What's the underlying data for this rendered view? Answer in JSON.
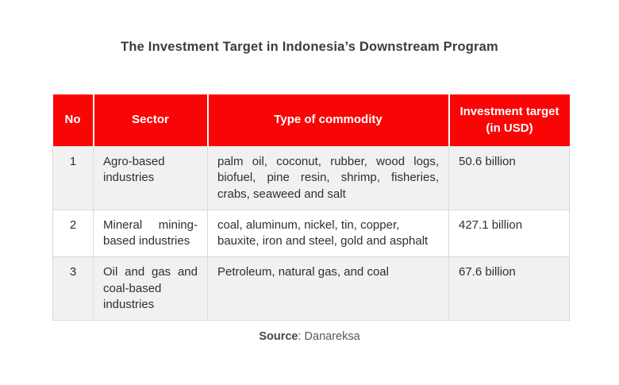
{
  "title": {
    "text": "The Investment Target in Indonesia’s Downstream Program"
  },
  "colors": {
    "header_bg": "#fa0505",
    "header_text": "#ffffff",
    "row_alt_bg": "#f1f1f1",
    "row_bg": "#ffffff",
    "border": "#d9d9d9",
    "body_text": "#2d2f31",
    "title_text": "#3a3c3f"
  },
  "table": {
    "columns": [
      {
        "key": "no",
        "label": "No"
      },
      {
        "key": "sector",
        "label": "Sector"
      },
      {
        "key": "commodity",
        "label": "Type of commodity"
      },
      {
        "key": "investment",
        "label": "Investment target (in USD)"
      }
    ],
    "rows": [
      {
        "no": "1",
        "sector": "Agro-based industries",
        "commodity": "palm oil, coconut, rubber, wood logs, biofuel, pine resin, shrimp, fisheries, crabs, seaweed and salt",
        "investment": "50.6 billion"
      },
      {
        "no": "2",
        "sector": "Mineral mining-based industries",
        "commodity": "coal, aluminum, nickel, tin, copper,\nbauxite, iron and steel, gold and asphalt",
        "investment": "427.1 billion"
      },
      {
        "no": "3",
        "sector": "Oil and gas and coal-based industries",
        "commodity": "Petroleum, natural gas, and coal",
        "investment": "67.6 billion"
      }
    ]
  },
  "source": {
    "label": "Source",
    "value": ": Danareksa"
  },
  "chart_data": {
    "type": "table",
    "title": "The Investment Target in Indonesia’s Downstream Program",
    "columns": [
      "No",
      "Sector",
      "Type of commodity",
      "Investment target (in USD)"
    ],
    "rows": [
      [
        "1",
        "Agro-based industries",
        "palm oil, coconut, rubber, wood logs, biofuel, pine resin, shrimp, fisheries, crabs, seaweed and salt",
        "50.6 billion"
      ],
      [
        "2",
        "Mineral mining-based industries",
        "coal, aluminum, nickel, tin, copper, bauxite, iron and steel, gold and asphalt",
        "427.1 billion"
      ],
      [
        "3",
        "Oil and gas and coal-based industries",
        "Petroleum, natural gas, and coal",
        "67.6 billion"
      ]
    ],
    "investment_values_usd_billion": [
      50.6,
      427.1,
      67.6
    ],
    "source": "Danareksa"
  }
}
